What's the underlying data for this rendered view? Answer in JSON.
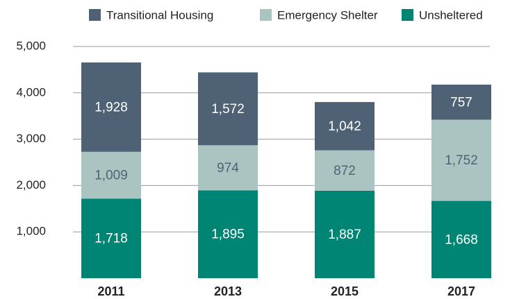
{
  "chart_data": {
    "type": "stacked_bar",
    "categories": [
      "2011",
      "2013",
      "2015",
      "2017"
    ],
    "series": [
      {
        "name": "Transitional Housing",
        "color": "#4f6275",
        "label_color": "#ffffff",
        "values": [
          1928,
          1572,
          1042,
          757
        ],
        "value_labels": [
          "1,928",
          "1,572",
          "1,042",
          "757"
        ]
      },
      {
        "name": "Emergency Shelter",
        "color": "#aac5c1",
        "label_color": "#4f6275",
        "values": [
          1009,
          974,
          872,
          1752
        ],
        "value_labels": [
          "1,009",
          "974",
          "872",
          "1,752"
        ]
      },
      {
        "name": "Unsheltered",
        "color": "#008574",
        "label_color": "#ffffff",
        "values": [
          1718,
          1895,
          1887,
          1668
        ],
        "value_labels": [
          "1,718",
          "1,895",
          "1,887",
          "1,668"
        ]
      }
    ],
    "ylim": [
      0,
      5000
    ],
    "yticks": [
      {
        "value": 1000,
        "label": "1,000"
      },
      {
        "value": 2000,
        "label": "2,000"
      },
      {
        "value": 3000,
        "label": "3,000"
      },
      {
        "value": 4000,
        "label": "4,000"
      },
      {
        "value": 5000,
        "label": "5,000"
      }
    ],
    "grid": true,
    "legend": "top"
  }
}
